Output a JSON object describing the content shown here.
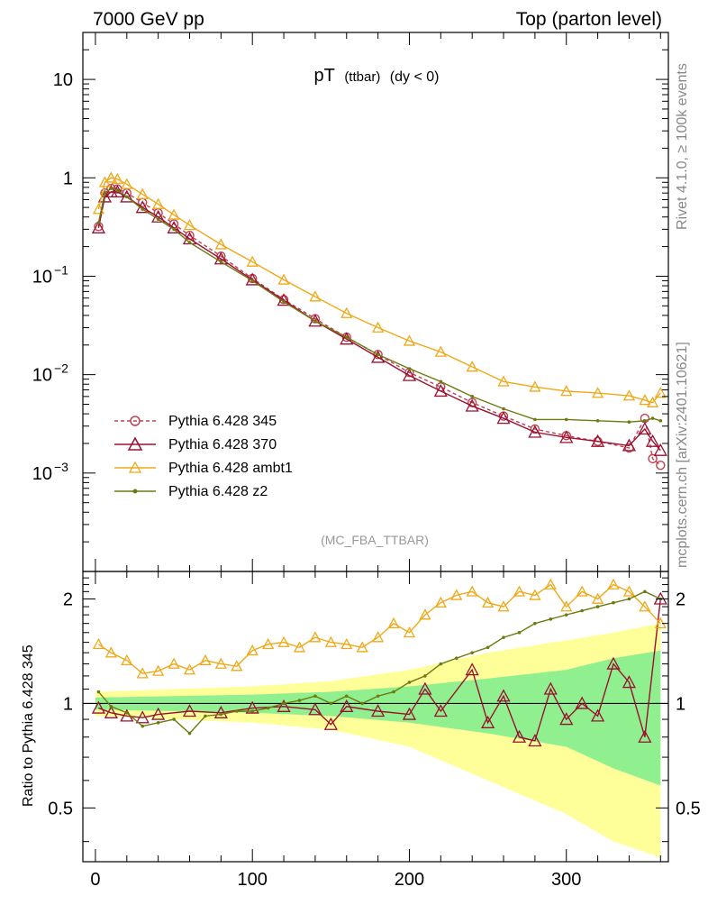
{
  "header": {
    "left": "7000 GeV pp",
    "right": "Top (parton level)"
  },
  "side_notes": {
    "rivet": "Rivet 4.1.0, ≥ 100k events",
    "mcplots": "mcplots.cern.ch [arXiv:2401.10621]"
  },
  "watermark": "(MC_FBA_TTBAR)",
  "colors": {
    "p345": "#c04050",
    "p370": "#9a1030",
    "ambt1": "#f0a818",
    "z2": "#6e7a10",
    "band_inner": "#90f090",
    "band_outer": "#ffff99"
  },
  "chart_data": [
    {
      "type": "line",
      "title_main": "pT",
      "title_sub": "(ttbar)",
      "title_cond": "(dy < 0)",
      "xlim": [
        -8,
        365
      ],
      "ylim": [
        0.0001,
        30
      ],
      "yscale": "log",
      "yticks": [
        {
          "value": 10,
          "label": "10"
        },
        {
          "value": 1,
          "label": "1"
        },
        {
          "value": 0.1,
          "label": "10",
          "exp": "−1"
        },
        {
          "value": 0.01,
          "label": "10",
          "exp": "−2"
        },
        {
          "value": 0.001,
          "label": "10",
          "exp": "−3"
        }
      ],
      "legend_position": "lower-left",
      "series": [
        {
          "key": "p345",
          "name": "Pythia 6.428 345",
          "marker": "circle",
          "dashed": true,
          "x": [
            2,
            6,
            10,
            14,
            20,
            30,
            40,
            50,
            60,
            80,
            100,
            120,
            140,
            160,
            180,
            200,
            220,
            240,
            260,
            280,
            300,
            320,
            340,
            350,
            355,
            360
          ],
          "y": [
            0.32,
            0.7,
            0.78,
            0.77,
            0.7,
            0.56,
            0.44,
            0.34,
            0.26,
            0.16,
            0.095,
            0.058,
            0.037,
            0.024,
            0.016,
            0.0105,
            0.0075,
            0.0052,
            0.0038,
            0.0028,
            0.0024,
            0.0021,
            0.0018,
            0.0036,
            0.0014,
            0.0012
          ]
        },
        {
          "key": "p370",
          "name": "Pythia 6.428 370",
          "marker": "triangle",
          "dashed": false,
          "x": [
            2,
            6,
            10,
            14,
            20,
            30,
            40,
            50,
            60,
            80,
            100,
            120,
            140,
            160,
            180,
            200,
            220,
            240,
            260,
            280,
            300,
            320,
            340,
            350,
            355,
            360
          ],
          "y": [
            0.31,
            0.64,
            0.72,
            0.72,
            0.64,
            0.5,
            0.4,
            0.31,
            0.24,
            0.15,
            0.092,
            0.057,
            0.035,
            0.023,
            0.015,
            0.0098,
            0.0068,
            0.0048,
            0.0036,
            0.0026,
            0.0023,
            0.0021,
            0.0019,
            0.0028,
            0.0021,
            0.0017
          ]
        },
        {
          "key": "ambt1",
          "name": "Pythia 6.428 ambt1",
          "marker": "triangle-open",
          "dashed": false,
          "x": [
            2,
            6,
            10,
            14,
            20,
            30,
            40,
            50,
            60,
            80,
            100,
            120,
            140,
            160,
            180,
            200,
            220,
            240,
            260,
            280,
            300,
            320,
            340,
            350,
            355,
            360
          ],
          "y": [
            0.48,
            0.9,
            1.0,
            0.97,
            0.86,
            0.68,
            0.54,
            0.42,
            0.33,
            0.21,
            0.14,
            0.092,
            0.062,
            0.042,
            0.03,
            0.022,
            0.017,
            0.012,
            0.0085,
            0.0075,
            0.0068,
            0.0065,
            0.0061,
            0.0055,
            0.0052,
            0.0065
          ]
        },
        {
          "key": "z2",
          "name": "Pythia 6.428 z2",
          "marker": "dot",
          "dashed": false,
          "x": [
            2,
            6,
            10,
            14,
            20,
            30,
            40,
            50,
            60,
            80,
            100,
            120,
            140,
            160,
            180,
            200,
            220,
            240,
            260,
            280,
            300,
            320,
            340,
            350,
            355,
            360
          ],
          "y": [
            0.35,
            0.7,
            0.78,
            0.75,
            0.64,
            0.48,
            0.38,
            0.3,
            0.22,
            0.14,
            0.09,
            0.055,
            0.035,
            0.024,
            0.016,
            0.0115,
            0.0085,
            0.006,
            0.0045,
            0.0035,
            0.0035,
            0.0034,
            0.0033,
            0.0034,
            0.0036,
            0.0034
          ]
        }
      ]
    },
    {
      "type": "line",
      "ylabel": "Ratio to Pythia 6.428 345",
      "xlim": [
        -8,
        365
      ],
      "ylim": [
        0.35,
        2.4
      ],
      "yscale": "log",
      "yticks": [
        {
          "value": 2,
          "label": "2"
        },
        {
          "value": 1,
          "label": "1"
        },
        {
          "value": 0.5,
          "label": "0.5"
        }
      ],
      "xticks": [
        0,
        100,
        200,
        300
      ],
      "bands": {
        "x": [
          0,
          50,
          100,
          150,
          200,
          250,
          300,
          330,
          360
        ],
        "inner": [
          0.04,
          0.05,
          0.06,
          0.08,
          0.12,
          0.18,
          0.25,
          0.35,
          0.42
        ],
        "outer": [
          0.08,
          0.1,
          0.12,
          0.16,
          0.25,
          0.4,
          0.52,
          0.6,
          0.7
        ]
      },
      "series": [
        {
          "key": "p370",
          "name": "Pythia 6.428 370",
          "x": [
            2,
            10,
            20,
            30,
            40,
            60,
            80,
            100,
            120,
            140,
            150,
            160,
            180,
            200,
            210,
            220,
            240,
            250,
            260,
            270,
            280,
            290,
            300,
            310,
            320,
            330,
            340,
            350,
            360
          ],
          "y": [
            0.97,
            0.94,
            0.92,
            0.91,
            0.93,
            0.95,
            0.94,
            0.97,
            0.98,
            0.96,
            0.87,
            0.98,
            0.95,
            0.93,
            1.1,
            0.95,
            1.25,
            0.88,
            1.05,
            0.8,
            0.78,
            1.1,
            0.9,
            1.0,
            0.92,
            1.3,
            1.15,
            0.8,
            2.0
          ]
        },
        {
          "key": "ambt1",
          "name": "Pythia 6.428 ambt1",
          "x": [
            2,
            10,
            20,
            30,
            40,
            50,
            60,
            70,
            80,
            90,
            100,
            110,
            120,
            130,
            140,
            150,
            160,
            170,
            180,
            190,
            200,
            210,
            220,
            230,
            240,
            250,
            260,
            270,
            280,
            290,
            300,
            310,
            320,
            330,
            340,
            350,
            360
          ],
          "y": [
            1.48,
            1.4,
            1.33,
            1.22,
            1.24,
            1.3,
            1.25,
            1.33,
            1.3,
            1.28,
            1.42,
            1.48,
            1.5,
            1.45,
            1.55,
            1.5,
            1.48,
            1.45,
            1.55,
            1.7,
            1.6,
            1.8,
            1.95,
            2.05,
            2.1,
            1.95,
            1.9,
            2.1,
            2.05,
            2.2,
            1.9,
            2.1,
            2.0,
            2.2,
            2.1,
            1.9,
            1.7
          ]
        },
        {
          "key": "z2",
          "name": "Pythia 6.428 z2",
          "x": [
            2,
            10,
            20,
            30,
            40,
            50,
            60,
            70,
            80,
            90,
            100,
            110,
            120,
            130,
            140,
            150,
            160,
            170,
            180,
            190,
            200,
            210,
            220,
            230,
            240,
            250,
            260,
            270,
            280,
            290,
            300,
            310,
            320,
            330,
            340,
            350,
            360
          ],
          "y": [
            1.08,
            0.98,
            0.94,
            0.86,
            0.88,
            0.9,
            0.82,
            0.92,
            0.93,
            0.95,
            0.95,
            0.97,
            1.0,
            1.02,
            1.05,
            1.0,
            1.05,
            1.0,
            1.05,
            1.08,
            1.15,
            1.2,
            1.3,
            1.35,
            1.4,
            1.45,
            1.55,
            1.6,
            1.7,
            1.75,
            1.8,
            1.85,
            1.9,
            1.95,
            2.0,
            2.1,
            2.0
          ]
        }
      ]
    }
  ]
}
